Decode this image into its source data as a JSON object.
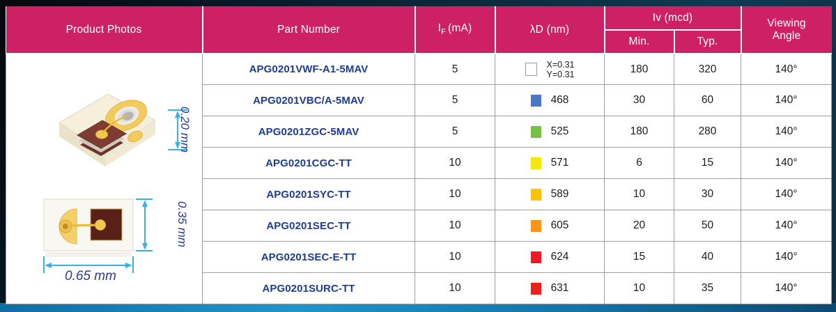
{
  "table": {
    "header": {
      "product_photos": "Product Photos",
      "part_number": "Part Number",
      "if_symbol": "I",
      "if_subscript": "F",
      "if_unit": "(mA)",
      "lambda_d": "λD (nm)",
      "iv": "Iv (mcd)",
      "min": "Min.",
      "typ": "Typ.",
      "viewing_line1": "Viewing",
      "viewing_line2": "Angle",
      "header_bg": "#ce2165"
    },
    "rows": [
      {
        "part_number": "APG0201VWF-A1-5MAV",
        "if_ma": "5",
        "swatch_color": "#ffffff",
        "swatch_outline": true,
        "chromaticity": [
          "X=0.31",
          "Y=0.31"
        ],
        "ld_nm": "",
        "iv_min": "180",
        "iv_typ": "320",
        "viewing_angle": "140°"
      },
      {
        "part_number": "APG0201VBC/A-5MAV",
        "if_ma": "5",
        "swatch_color": "#4a78c5",
        "ld_nm": "468",
        "iv_min": "30",
        "iv_typ": "60",
        "viewing_angle": "140°"
      },
      {
        "part_number": "APG0201ZGC-5MAV",
        "if_ma": "5",
        "swatch_color": "#76c043",
        "ld_nm": "525",
        "iv_min": "180",
        "iv_typ": "280",
        "viewing_angle": "140°"
      },
      {
        "part_number": "APG0201CGC-TT",
        "if_ma": "10",
        "swatch_color": "#f3e70c",
        "ld_nm": "571",
        "iv_min": "6",
        "iv_typ": "15",
        "viewing_angle": "140°"
      },
      {
        "part_number": "APG0201SYC-TT",
        "if_ma": "10",
        "swatch_color": "#fcc20a",
        "ld_nm": "589",
        "iv_min": "10",
        "iv_typ": "30",
        "viewing_angle": "140°"
      },
      {
        "part_number": "APG0201SEC-TT",
        "if_ma": "10",
        "swatch_color": "#f7941e",
        "ld_nm": "605",
        "iv_min": "20",
        "iv_typ": "50",
        "viewing_angle": "140°"
      },
      {
        "part_number": "APG0201SEC-E-TT",
        "if_ma": "10",
        "swatch_color": "#ed1c24",
        "ld_nm": "624",
        "iv_min": "15",
        "iv_typ": "40",
        "viewing_angle": "140°"
      },
      {
        "part_number": "APG0201SURC-TT",
        "if_ma": "10",
        "swatch_color": "#e8231e",
        "ld_nm": "631",
        "iv_min": "10",
        "iv_typ": "35",
        "viewing_angle": "140°"
      }
    ]
  },
  "photos": {
    "perspective_view": {
      "thickness_label": "0.20 mm"
    },
    "top_view": {
      "height_label": "0.35 mm",
      "width_label": "0.65 mm"
    },
    "dimension_label_color": "#2b3990",
    "arrow_color": "#36b3e6"
  }
}
